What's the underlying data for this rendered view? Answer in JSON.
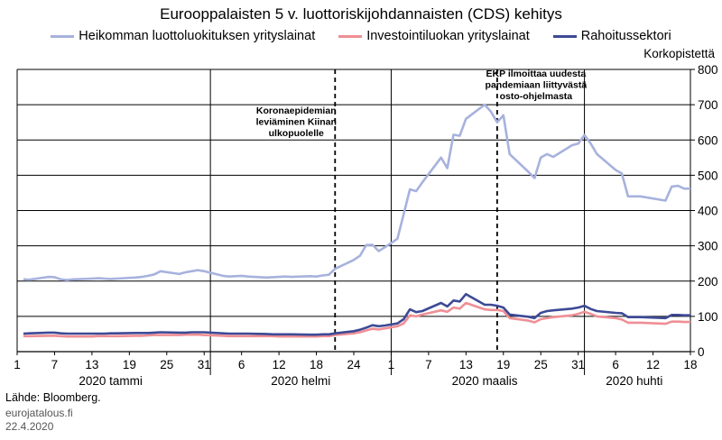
{
  "chart_data": {
    "type": "line",
    "title": "Eurooppalaisten 5 v. luottoriskijohdannaisten (CDS) kehitys",
    "ylabel": "Korkopistettä",
    "ylim": [
      0,
      800
    ],
    "yticks": [
      0,
      100,
      200,
      300,
      400,
      500,
      600,
      700,
      800
    ],
    "grid": true,
    "legend_position": "top",
    "x_tick_labels": [
      {
        "day": 1,
        "label": "1"
      },
      {
        "day": 7,
        "label": "7"
      },
      {
        "day": 13,
        "label": "13"
      },
      {
        "day": 19,
        "label": "19"
      },
      {
        "day": 25,
        "label": "25"
      },
      {
        "day": 31,
        "label": "31"
      },
      {
        "day": 37,
        "label": "6"
      },
      {
        "day": 43,
        "label": "12"
      },
      {
        "day": 49,
        "label": "18"
      },
      {
        "day": 55,
        "label": "24"
      },
      {
        "day": 61,
        "label": "1"
      },
      {
        "day": 67,
        "label": "7"
      },
      {
        "day": 73,
        "label": "13"
      },
      {
        "day": 79,
        "label": "19"
      },
      {
        "day": 85,
        "label": "25"
      },
      {
        "day": 91,
        "label": "31"
      },
      {
        "day": 97,
        "label": "6"
      },
      {
        "day": 103,
        "label": "12"
      },
      {
        "day": 109,
        "label": "18"
      }
    ],
    "xlim": [
      1,
      109
    ],
    "month_labels": [
      {
        "label": "2020 tammi",
        "center_day": 16
      },
      {
        "label": "2020 helmi",
        "center_day": 46.5
      },
      {
        "label": "2020 maalis",
        "center_day": 76
      },
      {
        "label": "2020 huhti",
        "center_day": 100
      }
    ],
    "month_separators": [
      32,
      61,
      92
    ],
    "annotations": [
      {
        "day": 52,
        "lines": [
          "Koronaepidemian",
          "leviäminen Kiinan",
          "ulkopuolelle"
        ]
      },
      {
        "day": 78,
        "lines": [
          "EKP ilmoittaa uudesta",
          "pandemiaan liittyvästä",
          "osto-ohjelmasta"
        ]
      }
    ],
    "series": [
      {
        "name": "Heikomman luottoluokituksen yrityslainat",
        "color": "#a7b2dd",
        "x": [
          2,
          3,
          6,
          7,
          8,
          9,
          10,
          13,
          14,
          15,
          16,
          17,
          20,
          21,
          22,
          23,
          24,
          27,
          28,
          29,
          30,
          31,
          34,
          35,
          36,
          37,
          38,
          41,
          42,
          43,
          44,
          45,
          48,
          49,
          50,
          51,
          52,
          55,
          56,
          57,
          58,
          59,
          60,
          62,
          63,
          64,
          65,
          66,
          69,
          70,
          71,
          72,
          73,
          76,
          77,
          78,
          79,
          80,
          83,
          84,
          85,
          86,
          87,
          90,
          91,
          92,
          93,
          94,
          97,
          98,
          99,
          100,
          101,
          105,
          106,
          107,
          108,
          109
        ],
        "values": [
          205,
          204,
          212,
          211,
          205,
          203,
          205,
          207,
          208,
          207,
          206,
          207,
          210,
          212,
          215,
          219,
          228,
          220,
          225,
          228,
          231,
          228,
          215,
          213,
          214,
          215,
          213,
          210,
          211,
          212,
          213,
          212,
          214,
          213,
          216,
          218,
          235,
          260,
          272,
          302,
          303,
          285,
          296,
          320,
          390,
          460,
          455,
          480,
          550,
          520,
          615,
          612,
          660,
          700,
          680,
          650,
          670,
          560,
          510,
          492,
          550,
          560,
          552,
          585,
          590,
          614,
          590,
          560,
          515,
          505,
          440,
          440,
          440,
          428,
          468,
          470,
          462,
          462
        ]
      },
      {
        "name": "Investointiluokan yrityslainat",
        "color": "#ef8f95",
        "x": [
          2,
          3,
          6,
          7,
          8,
          9,
          10,
          13,
          14,
          15,
          16,
          17,
          20,
          21,
          22,
          23,
          24,
          27,
          28,
          29,
          30,
          31,
          34,
          35,
          36,
          37,
          38,
          41,
          42,
          43,
          44,
          45,
          48,
          49,
          50,
          51,
          52,
          55,
          56,
          57,
          58,
          59,
          60,
          62,
          63,
          64,
          65,
          66,
          69,
          70,
          71,
          72,
          73,
          76,
          77,
          78,
          79,
          80,
          83,
          84,
          85,
          86,
          87,
          90,
          91,
          92,
          93,
          94,
          97,
          98,
          99,
          100,
          101,
          105,
          106,
          107,
          108,
          109
        ],
        "values": [
          44,
          44,
          45,
          45,
          44,
          43,
          43,
          43,
          44,
          44,
          44,
          44,
          45,
          45,
          46,
          47,
          47,
          47,
          48,
          48,
          48,
          47,
          45,
          44,
          44,
          44,
          44,
          44,
          44,
          43,
          43,
          43,
          43,
          43,
          44,
          44,
          47,
          52,
          55,
          60,
          65,
          63,
          66,
          72,
          80,
          103,
          100,
          105,
          117,
          113,
          125,
          122,
          138,
          120,
          118,
          118,
          115,
          95,
          88,
          83,
          92,
          95,
          98,
          103,
          107,
          113,
          107,
          100,
          95,
          91,
          82,
          82,
          82,
          79,
          85,
          85,
          84,
          84
        ]
      },
      {
        "name": "Rahoitussektori",
        "color": "#3d4a96",
        "x": [
          2,
          3,
          6,
          7,
          8,
          9,
          10,
          13,
          14,
          15,
          16,
          17,
          20,
          21,
          22,
          23,
          24,
          27,
          28,
          29,
          30,
          31,
          34,
          35,
          36,
          37,
          38,
          41,
          42,
          43,
          44,
          45,
          48,
          49,
          50,
          51,
          52,
          55,
          56,
          57,
          58,
          59,
          60,
          62,
          63,
          64,
          65,
          66,
          69,
          70,
          71,
          72,
          73,
          76,
          77,
          78,
          79,
          80,
          83,
          84,
          85,
          86,
          87,
          90,
          91,
          92,
          93,
          94,
          97,
          98,
          99,
          100,
          101,
          105,
          106,
          107,
          108,
          109
        ],
        "values": [
          51,
          52,
          54,
          54,
          52,
          51,
          51,
          51,
          51,
          51,
          52,
          52,
          53,
          53,
          53,
          54,
          55,
          54,
          54,
          55,
          55,
          55,
          52,
          51,
          51,
          51,
          51,
          50,
          49,
          49,
          49,
          49,
          48,
          48,
          49,
          49,
          52,
          58,
          62,
          68,
          75,
          72,
          74,
          80,
          92,
          120,
          112,
          115,
          138,
          128,
          145,
          142,
          163,
          133,
          133,
          130,
          125,
          105,
          99,
          95,
          110,
          115,
          117,
          122,
          125,
          130,
          121,
          115,
          110,
          109,
          98,
          98,
          98,
          95,
          104,
          104,
          103,
          103
        ]
      }
    ]
  },
  "source": "Lähde: Bloomberg.",
  "site": "eurojatalous.fi",
  "date": "22.4.2020"
}
